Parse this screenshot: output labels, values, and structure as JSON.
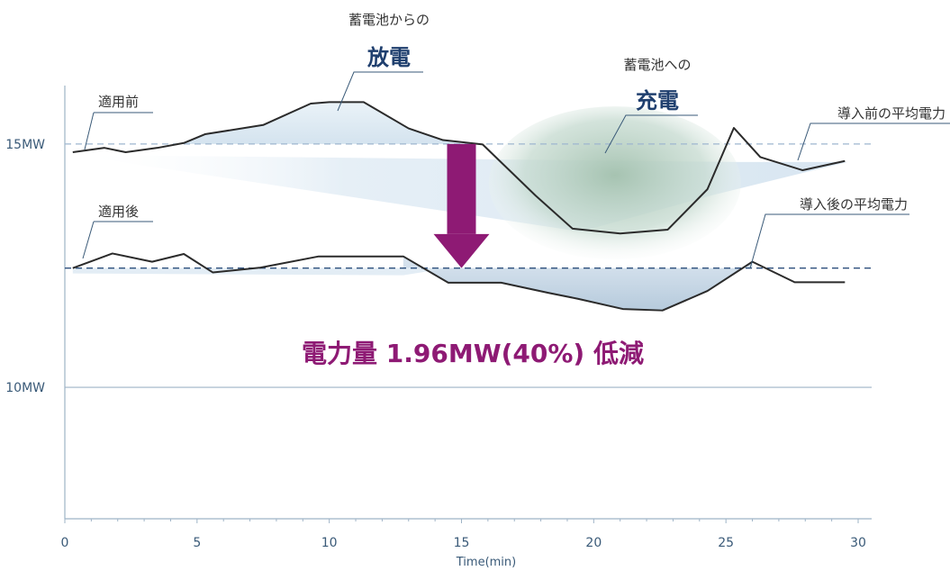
{
  "chart_data": {
    "type": "line",
    "xlabel": "Time(min)",
    "ylabel": "",
    "xlim": [
      0,
      30
    ],
    "ylim": [
      7.3,
      16.2
    ],
    "x_ticks": [
      0,
      5,
      10,
      15,
      20,
      25,
      30
    ],
    "y_ticks": [
      {
        "value": 15,
        "label": "15MW"
      },
      {
        "value": 10,
        "label": "10MW"
      }
    ],
    "grid": false,
    "series": [
      {
        "name": "適用前",
        "color": "#2b2b2b",
        "x": [
          0.3,
          1.5,
          2.3,
          3.5,
          4.5,
          5.3,
          7.5,
          9.3,
          10.0,
          11.3,
          13.0,
          14.3,
          15.8,
          17.8,
          19.2,
          21.0,
          22.8,
          24.3,
          25.3,
          26.3,
          27.9,
          29.5
        ],
        "y": [
          14.83,
          14.92,
          14.83,
          14.92,
          15.02,
          15.2,
          15.39,
          15.83,
          15.86,
          15.86,
          15.32,
          15.08,
          14.99,
          13.94,
          13.26,
          13.16,
          13.24,
          14.07,
          15.33,
          14.73,
          14.46,
          14.65
        ]
      },
      {
        "name": "適用後",
        "color": "#2b2b2b",
        "x": [
          0.3,
          1.8,
          3.3,
          4.5,
          5.6,
          7.4,
          9.6,
          11.3,
          12.8,
          14.5,
          16.5,
          18.3,
          19.4,
          21.1,
          22.6,
          24.3,
          26.0,
          27.6,
          29.5
        ],
        "y": [
          12.45,
          12.75,
          12.58,
          12.74,
          12.36,
          12.46,
          12.69,
          12.69,
          12.69,
          12.15,
          12.15,
          11.94,
          11.82,
          11.61,
          11.58,
          11.98,
          12.58,
          12.16,
          12.16
        ]
      }
    ],
    "reference_lines": [
      {
        "name": "導入前の平均電力",
        "y": 15.0,
        "style": "dashed-light"
      },
      {
        "name": "導入後の平均電力",
        "y": 12.45,
        "style": "dashed-dark"
      }
    ],
    "annotations": {
      "before_label": "適用前",
      "after_label": "適用後",
      "discharge_caption": "蓄電池からの",
      "discharge_title": "放電",
      "charge_caption": "蓄電池への",
      "charge_title": "充電",
      "avg_before_label": "導入前の平均電力",
      "avg_after_label": "導入後の平均電力",
      "reduction_text": "電力量 1.96MW(40%) 低減"
    },
    "colors": {
      "arrow": "#8e1a74",
      "reduction_text": "#8e1a74",
      "axis": "#9eb3c6",
      "avg_before_line": "#9eb6cf",
      "avg_after_line": "#2d4f7c",
      "charge_fill": "#a7c4b5",
      "discharge_fill": "#d8e6f0",
      "after_fill": "#a9c1d6"
    }
  }
}
